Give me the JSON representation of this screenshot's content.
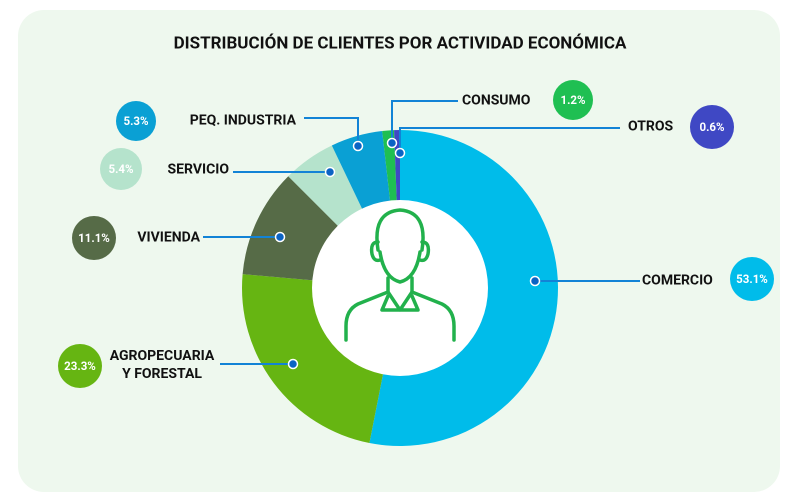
{
  "chart_data": {
    "type": "donut",
    "title": "DISTRIBUCIÓN DE CLIENTES POR ACTIVIDAD ECONÓMICA",
    "categories": [
      "COMERCIO",
      "AGROPECUARIA\nY FORESTAL",
      "VIVIENDA",
      "SERVICIO",
      "PEQ. INDUSTRIA",
      "CONSUMO",
      "OTROS"
    ],
    "values": [
      53.1,
      23.3,
      11.1,
      5.4,
      5.3,
      1.2,
      0.6
    ],
    "value_labels": [
      "53.1%",
      "23.3%",
      "11.1%",
      "5.4%",
      "5.3%",
      "1.2%",
      "0.6%"
    ],
    "colors": [
      "#00bcea",
      "#66b512",
      "#566b47",
      "#b5e3cc",
      "#0aa0d4",
      "#1fbf52",
      "#3f48c4"
    ]
  }
}
